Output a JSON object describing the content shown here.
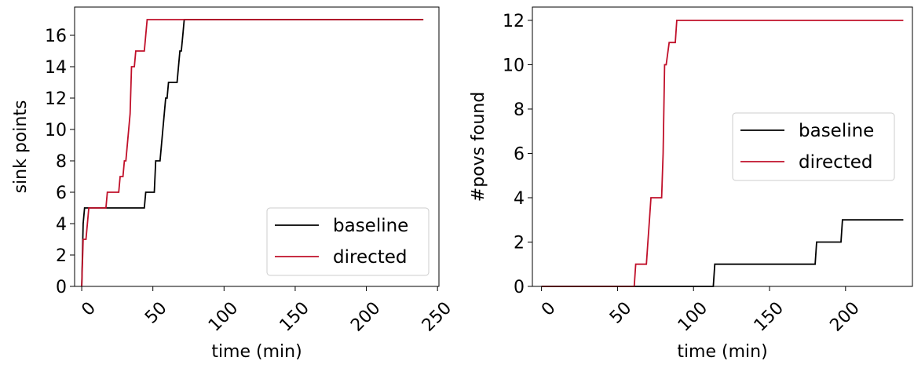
{
  "colors": {
    "baseline": "#000000",
    "directed": "#c0102a"
  },
  "chart_data": [
    {
      "type": "line",
      "xlabel": "time (min)",
      "ylabel": "sink points",
      "xlim": [
        -5,
        251
      ],
      "ylim": [
        0,
        17.8
      ],
      "xticks": [
        0,
        50,
        100,
        150,
        200,
        250
      ],
      "yticks": [
        0,
        2,
        4,
        6,
        8,
        10,
        12,
        14,
        16
      ],
      "grid": false,
      "legend": "bottom-right",
      "series": [
        {
          "name": "baseline",
          "color": "#000000",
          "x": [
            0,
            1,
            2,
            44,
            45,
            51,
            52,
            55,
            56,
            57,
            58,
            59,
            60,
            61,
            62,
            63,
            67,
            68,
            69,
            70,
            71,
            72,
            73,
            240
          ],
          "y": [
            0,
            4,
            5,
            5,
            6,
            6,
            8,
            8,
            9,
            10,
            11,
            12,
            12,
            13,
            13,
            13,
            13,
            14,
            15,
            15,
            16,
            17,
            17,
            17
          ]
        },
        {
          "name": "directed",
          "color": "#c0102a",
          "x": [
            0,
            1,
            2,
            3,
            4,
            5,
            17,
            18,
            26,
            27,
            28,
            29,
            30,
            31,
            32,
            33,
            34,
            35,
            36,
            37,
            38,
            42,
            43,
            44,
            45,
            46,
            47,
            48,
            240
          ],
          "y": [
            0,
            3,
            3,
            3,
            4,
            5,
            5,
            6,
            6,
            7,
            7,
            7,
            8,
            8,
            9,
            10,
            11,
            14,
            14,
            14,
            15,
            15,
            15,
            15,
            16,
            17,
            17,
            17,
            17
          ]
        }
      ]
    },
    {
      "type": "line",
      "xlabel": "time (min)",
      "ylabel": "#povs found",
      "xlim": [
        -6,
        244
      ],
      "ylim": [
        0,
        12.6
      ],
      "xticks": [
        0,
        50,
        100,
        150,
        200
      ],
      "yticks": [
        0,
        2,
        4,
        6,
        8,
        10,
        12
      ],
      "grid": false,
      "legend": "center-right",
      "series": [
        {
          "name": "baseline",
          "color": "#000000",
          "x": [
            0,
            113,
            114,
            180,
            181,
            197,
            198,
            238
          ],
          "y": [
            0,
            0,
            1,
            1,
            2,
            2,
            3,
            3
          ]
        },
        {
          "name": "directed",
          "color": "#c0102a",
          "x": [
            0,
            61,
            62,
            69,
            70,
            71,
            72,
            79,
            80,
            81,
            82,
            84,
            85,
            88,
            89,
            90,
            238
          ],
          "y": [
            0,
            0,
            1,
            1,
            2,
            3,
            4,
            4,
            6,
            10,
            10,
            11,
            11,
            11,
            12,
            12,
            12
          ]
        }
      ]
    }
  ]
}
